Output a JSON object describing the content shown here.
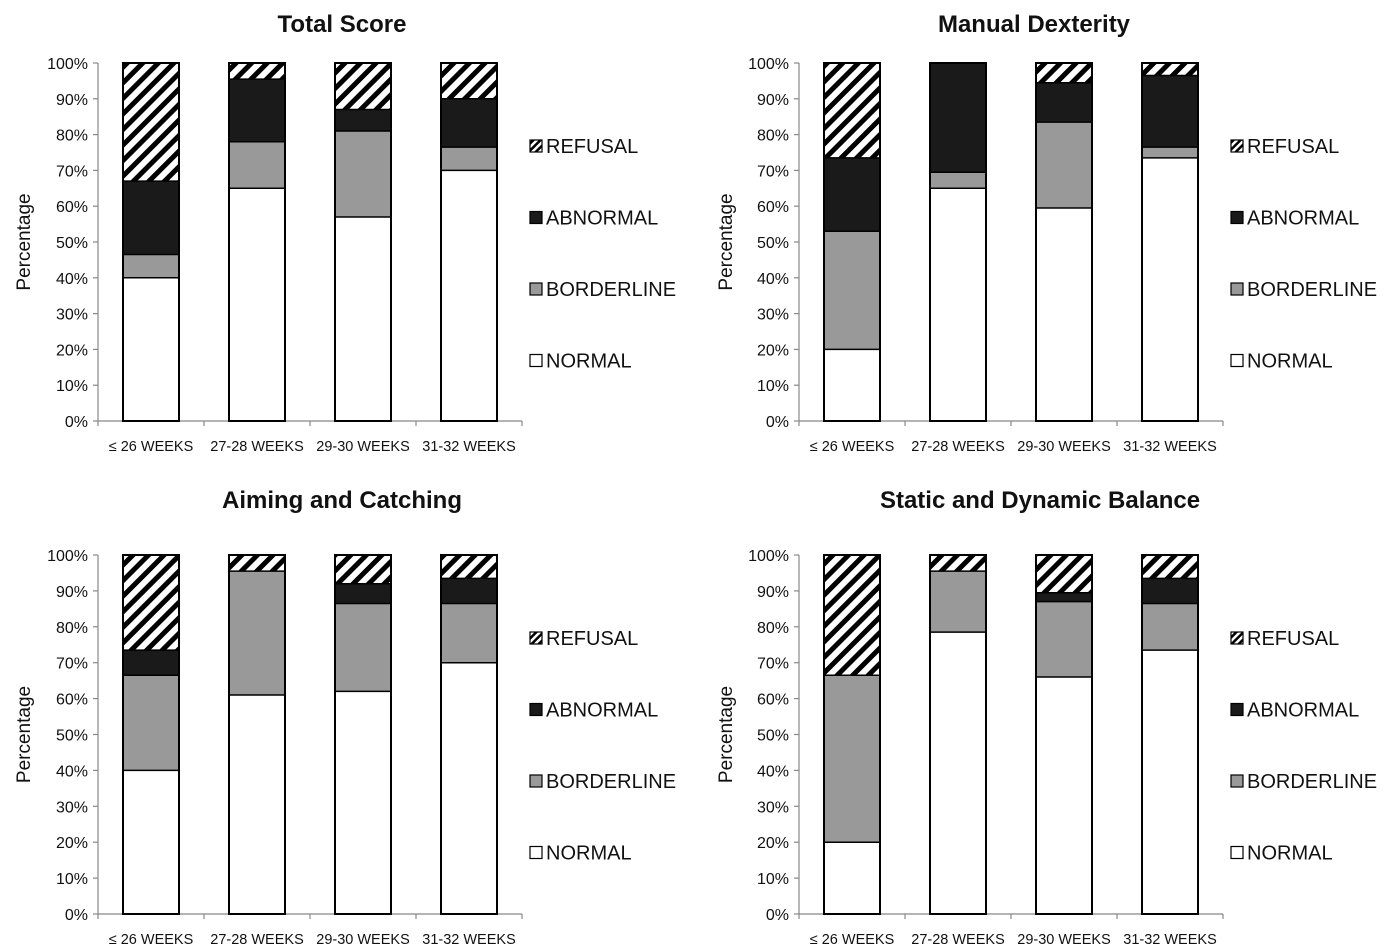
{
  "colors": {
    "normal": "#ffffff",
    "borderline": "#999999",
    "abnormal": "#1a1a1a",
    "refusal_stripe": "#000000",
    "axis": "#888888",
    "bar_outline": "#000000"
  },
  "chart_data": [
    {
      "type": "bar",
      "stacked": true,
      "title": "Total Score",
      "ylabel": "Percentage",
      "ylim": [
        0,
        100
      ],
      "yticks": [
        "0%",
        "10%",
        "20%",
        "30%",
        "40%",
        "50%",
        "60%",
        "70%",
        "80%",
        "90%",
        "100%"
      ],
      "categories": [
        "≤ 26 WEEKS",
        "27-28 WEEKS",
        "29-30 WEEKS",
        "31-32 WEEKS"
      ],
      "legend": [
        "REFUSAL",
        "ABNORMAL",
        "BORDERLINE",
        "NORMAL"
      ],
      "legend_position": "right",
      "series": [
        {
          "name": "NORMAL",
          "values": [
            40,
            65,
            57,
            70
          ]
        },
        {
          "name": "BORDERLINE",
          "values": [
            6.5,
            13,
            24,
            6.5
          ]
        },
        {
          "name": "ABNORMAL",
          "values": [
            20.5,
            17.5,
            6,
            13.5
          ]
        },
        {
          "name": "REFUSAL",
          "values": [
            33,
            4.5,
            13,
            10
          ]
        }
      ]
    },
    {
      "type": "bar",
      "stacked": true,
      "title": "Manual Dexterity",
      "ylabel": "Percentage",
      "ylim": [
        0,
        100
      ],
      "yticks": [
        "0%",
        "10%",
        "20%",
        "30%",
        "40%",
        "50%",
        "60%",
        "70%",
        "80%",
        "90%",
        "100%"
      ],
      "categories": [
        "≤ 26 WEEKS",
        "27-28 WEEKS",
        "29-30 WEEKS",
        "31-32 WEEKS"
      ],
      "legend": [
        "REFUSAL",
        "ABNORMAL",
        "BORDERLINE",
        "NORMAL"
      ],
      "legend_position": "right",
      "series": [
        {
          "name": "NORMAL",
          "values": [
            20,
            65,
            59.5,
            73.5
          ]
        },
        {
          "name": "BORDERLINE",
          "values": [
            33,
            4.5,
            24,
            3
          ]
        },
        {
          "name": "ABNORMAL",
          "values": [
            20.5,
            30.5,
            11,
            20
          ]
        },
        {
          "name": "REFUSAL",
          "values": [
            26.5,
            0,
            5.5,
            3.5
          ]
        }
      ]
    },
    {
      "type": "bar",
      "stacked": true,
      "title": "Aiming and Catching",
      "ylabel": "Percentage",
      "ylim": [
        0,
        100
      ],
      "yticks": [
        "0%",
        "10%",
        "20%",
        "30%",
        "40%",
        "50%",
        "60%",
        "70%",
        "80%",
        "90%",
        "100%"
      ],
      "categories": [
        "≤ 26 WEEKS",
        "27-28 WEEKS",
        "29-30 WEEKS",
        "31-32 WEEKS"
      ],
      "legend": [
        "REFUSAL",
        "ABNORMAL",
        "BORDERLINE",
        "NORMAL"
      ],
      "legend_position": "right",
      "series": [
        {
          "name": "NORMAL",
          "values": [
            40,
            61,
            62,
            70
          ]
        },
        {
          "name": "BORDERLINE",
          "values": [
            26.5,
            34.5,
            24.5,
            16.5
          ]
        },
        {
          "name": "ABNORMAL",
          "values": [
            7,
            0,
            5.5,
            7
          ]
        },
        {
          "name": "REFUSAL",
          "values": [
            26.5,
            4.5,
            8,
            6.5
          ]
        }
      ]
    },
    {
      "type": "bar",
      "stacked": true,
      "title": "Static and Dynamic Balance",
      "ylabel": "Percentage",
      "ylim": [
        0,
        100
      ],
      "yticks": [
        "0%",
        "10%",
        "20%",
        "30%",
        "40%",
        "50%",
        "60%",
        "70%",
        "80%",
        "90%",
        "100%"
      ],
      "categories": [
        "≤ 26 WEEKS",
        "27-28 WEEKS",
        "29-30 WEEKS",
        "31-32 WEEKS"
      ],
      "legend": [
        "REFUSAL",
        "ABNORMAL",
        "BORDERLINE",
        "NORMAL"
      ],
      "legend_position": "right",
      "series": [
        {
          "name": "NORMAL",
          "values": [
            20,
            78.5,
            66,
            73.5
          ]
        },
        {
          "name": "BORDERLINE",
          "values": [
            46.5,
            17,
            21,
            13
          ]
        },
        {
          "name": "ABNORMAL",
          "values": [
            0,
            0,
            2.5,
            7
          ]
        },
        {
          "name": "REFUSAL",
          "values": [
            33.5,
            4.5,
            10.5,
            6.5
          ]
        }
      ]
    }
  ]
}
